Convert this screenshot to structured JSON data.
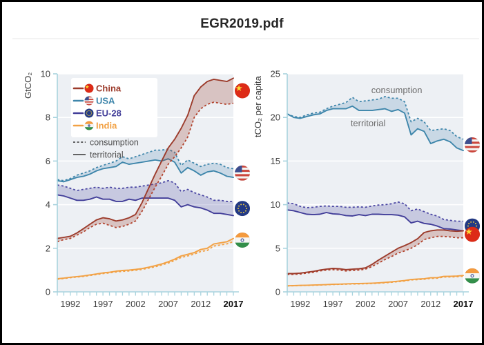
{
  "title": "EGR2019.pdf",
  "colors": {
    "plot_background": "#edf0f4",
    "axis": "#a8d3de",
    "gridline": "#ffffff",
    "tick_label": "#3e3e3e",
    "bold_tick_label": "#111111",
    "annotation_text": "#6e6e6e",
    "legend_gray": "#4f4f4f"
  },
  "legend": {
    "items": [
      {
        "key": "china",
        "label": "China"
      },
      {
        "key": "usa",
        "label": "USA"
      },
      {
        "key": "eu28",
        "label": "EU-28"
      },
      {
        "key": "india",
        "label": "India"
      }
    ],
    "style_items": [
      {
        "style": "dashed",
        "label": "consumption"
      },
      {
        "style": "solid",
        "label": "territorial"
      }
    ]
  },
  "chart_data": [
    {
      "type": "area",
      "ylabel": "GtCO₂",
      "ylim": [
        0,
        10
      ],
      "yticks": [
        0,
        2,
        4,
        6,
        8,
        10
      ],
      "x_range": [
        1990,
        2017
      ],
      "xticks": [
        1992,
        1997,
        2002,
        2007,
        2012,
        2017
      ],
      "bold_xtick": 2017,
      "annotations": [],
      "series": [
        {
          "key": "usa",
          "name": "USA",
          "line": "#3e86ab",
          "dash": "#3e86ab",
          "fill": "rgba(62,120,171,0.20)",
          "territorial": [
            5.1,
            5.05,
            5.15,
            5.25,
            5.3,
            5.4,
            5.55,
            5.65,
            5.7,
            5.75,
            5.95,
            5.85,
            5.9,
            5.95,
            6.0,
            6.05,
            6.0,
            6.1,
            5.95,
            5.45,
            5.7,
            5.55,
            5.35,
            5.5,
            5.55,
            5.45,
            5.3,
            5.25
          ],
          "consumption": [
            5.15,
            5.1,
            5.2,
            5.35,
            5.45,
            5.55,
            5.7,
            5.8,
            5.9,
            6.0,
            6.2,
            6.1,
            6.2,
            6.3,
            6.4,
            6.5,
            6.5,
            6.55,
            6.4,
            5.8,
            6.05,
            5.9,
            5.75,
            5.85,
            5.9,
            5.85,
            5.7,
            5.65
          ]
        },
        {
          "key": "eu28",
          "name": "EU-28",
          "line": "#423e99",
          "dash": "#4a46a3",
          "fill": "rgba(66,62,153,0.22)",
          "territorial": [
            4.45,
            4.4,
            4.3,
            4.2,
            4.2,
            4.25,
            4.35,
            4.25,
            4.25,
            4.15,
            4.15,
            4.25,
            4.2,
            4.3,
            4.3,
            4.3,
            4.3,
            4.3,
            4.2,
            3.9,
            4.0,
            3.9,
            3.85,
            3.75,
            3.6,
            3.6,
            3.55,
            3.5
          ],
          "consumption": [
            4.9,
            4.85,
            4.75,
            4.65,
            4.7,
            4.75,
            4.8,
            4.75,
            4.8,
            4.75,
            4.75,
            4.8,
            4.8,
            4.85,
            4.9,
            4.95,
            5.0,
            5.1,
            5.0,
            4.6,
            4.7,
            4.55,
            4.45,
            4.35,
            4.2,
            4.2,
            4.15,
            4.15
          ]
        },
        {
          "key": "india",
          "name": "India",
          "line": "#f2a144",
          "dash": "#f2a144",
          "fill": "rgba(242,161,68,0.18)",
          "territorial": [
            0.6,
            0.63,
            0.67,
            0.7,
            0.73,
            0.78,
            0.82,
            0.87,
            0.9,
            0.95,
            0.98,
            1.0,
            1.03,
            1.07,
            1.13,
            1.2,
            1.28,
            1.38,
            1.5,
            1.65,
            1.72,
            1.8,
            1.95,
            2.0,
            2.2,
            2.25,
            2.3,
            2.45
          ],
          "consumption": [
            0.58,
            0.61,
            0.65,
            0.68,
            0.71,
            0.75,
            0.79,
            0.84,
            0.87,
            0.91,
            0.94,
            0.96,
            0.99,
            1.03,
            1.09,
            1.15,
            1.23,
            1.32,
            1.44,
            1.58,
            1.65,
            1.73,
            1.85,
            1.9,
            2.1,
            2.15,
            2.2,
            2.3
          ]
        },
        {
          "key": "china",
          "name": "China",
          "line": "#9c3b2b",
          "dash": "#b2432d",
          "fill": "rgba(156,59,43,0.25)",
          "territorial": [
            2.45,
            2.5,
            2.55,
            2.7,
            2.9,
            3.1,
            3.3,
            3.4,
            3.35,
            3.25,
            3.3,
            3.4,
            3.55,
            4.1,
            4.75,
            5.4,
            6.0,
            6.6,
            7.0,
            7.5,
            8.1,
            9.0,
            9.4,
            9.65,
            9.75,
            9.7,
            9.65,
            9.8
          ],
          "consumption": [
            2.3,
            2.4,
            2.45,
            2.6,
            2.75,
            2.95,
            3.1,
            3.15,
            3.05,
            2.95,
            3.0,
            3.1,
            3.25,
            3.7,
            4.25,
            4.8,
            5.3,
            5.85,
            6.2,
            6.6,
            7.1,
            8.0,
            8.4,
            8.6,
            8.7,
            8.65,
            8.6,
            8.65
          ]
        }
      ]
    },
    {
      "type": "area",
      "ylabel": "tCO₂ per capita",
      "ylim": [
        0,
        25
      ],
      "yticks": [
        0,
        5,
        10,
        15,
        20,
        25
      ],
      "x_range": [
        1990,
        2017
      ],
      "xticks": [
        1992,
        1997,
        2002,
        2007,
        2012,
        2017
      ],
      "bold_xtick": 2017,
      "annotations": [
        {
          "label": "consumption",
          "x": 2006.8,
          "y": 22.8
        },
        {
          "label": "territorial",
          "x": 2002.4,
          "y": 19.0
        }
      ],
      "series": [
        {
          "key": "usa",
          "name": "USA",
          "line": "#3e86ab",
          "dash": "#3e86ab",
          "fill": "rgba(62,120,171,0.20)",
          "territorial": [
            20.4,
            20.0,
            19.9,
            20.1,
            20.3,
            20.4,
            20.8,
            21.0,
            21.0,
            21.0,
            21.3,
            20.8,
            20.8,
            20.8,
            20.9,
            21.0,
            20.7,
            20.9,
            20.5,
            18.0,
            18.7,
            18.4,
            17.0,
            17.3,
            17.5,
            17.2,
            16.5,
            16.2
          ],
          "consumption": [
            20.4,
            20.1,
            20.0,
            20.3,
            20.5,
            20.6,
            21.0,
            21.3,
            21.5,
            21.7,
            22.3,
            21.8,
            21.9,
            22.0,
            22.1,
            22.4,
            22.2,
            22.2,
            21.8,
            19.5,
            19.9,
            19.5,
            18.5,
            18.6,
            18.7,
            18.5,
            17.8,
            17.5
          ]
        },
        {
          "key": "eu28",
          "name": "EU-28",
          "line": "#423e99",
          "dash": "#4a46a3",
          "fill": "rgba(66,62,153,0.22)",
          "territorial": [
            9.4,
            9.3,
            9.1,
            8.9,
            8.85,
            8.9,
            9.1,
            8.95,
            8.9,
            8.75,
            8.7,
            8.85,
            8.75,
            8.9,
            8.9,
            8.85,
            8.85,
            8.8,
            8.6,
            7.9,
            8.1,
            7.85,
            7.75,
            7.55,
            7.25,
            7.2,
            7.1,
            7.0
          ],
          "consumption": [
            10.2,
            10.1,
            9.8,
            9.65,
            9.7,
            9.8,
            9.85,
            9.8,
            9.8,
            9.7,
            9.7,
            9.75,
            9.7,
            9.85,
            9.95,
            10.0,
            10.1,
            10.3,
            10.1,
            9.3,
            9.5,
            9.2,
            8.9,
            8.7,
            8.3,
            8.2,
            8.1,
            8.1
          ]
        },
        {
          "key": "china",
          "name": "China",
          "line": "#9c3b2b",
          "dash": "#b2432d",
          "fill": "rgba(156,59,43,0.25)",
          "territorial": [
            2.1,
            2.1,
            2.15,
            2.25,
            2.35,
            2.5,
            2.6,
            2.7,
            2.65,
            2.55,
            2.6,
            2.65,
            2.75,
            3.15,
            3.65,
            4.1,
            4.55,
            5.0,
            5.3,
            5.65,
            6.1,
            6.8,
            7.0,
            7.1,
            7.1,
            7.0,
            6.95,
            7.0
          ],
          "consumption": [
            2.0,
            2.0,
            2.05,
            2.15,
            2.25,
            2.4,
            2.5,
            2.55,
            2.5,
            2.4,
            2.45,
            2.5,
            2.6,
            2.9,
            3.3,
            3.7,
            4.05,
            4.45,
            4.7,
            5.0,
            5.4,
            6.0,
            6.2,
            6.35,
            6.35,
            6.3,
            6.2,
            6.2
          ]
        },
        {
          "key": "india",
          "name": "India",
          "line": "#f2a144",
          "dash": "#f2a144",
          "fill": "rgba(242,161,68,0.18)",
          "territorial": [
            0.7,
            0.72,
            0.74,
            0.76,
            0.78,
            0.81,
            0.84,
            0.87,
            0.89,
            0.92,
            0.94,
            0.95,
            0.97,
            1.0,
            1.04,
            1.09,
            1.15,
            1.22,
            1.3,
            1.42,
            1.46,
            1.51,
            1.61,
            1.64,
            1.77,
            1.79,
            1.81,
            1.88
          ],
          "consumption": [
            0.68,
            0.7,
            0.72,
            0.74,
            0.76,
            0.78,
            0.81,
            0.84,
            0.86,
            0.88,
            0.9,
            0.91,
            0.93,
            0.96,
            1.0,
            1.04,
            1.1,
            1.17,
            1.25,
            1.36,
            1.4,
            1.45,
            1.54,
            1.57,
            1.7,
            1.71,
            1.73,
            1.8
          ]
        }
      ]
    }
  ]
}
